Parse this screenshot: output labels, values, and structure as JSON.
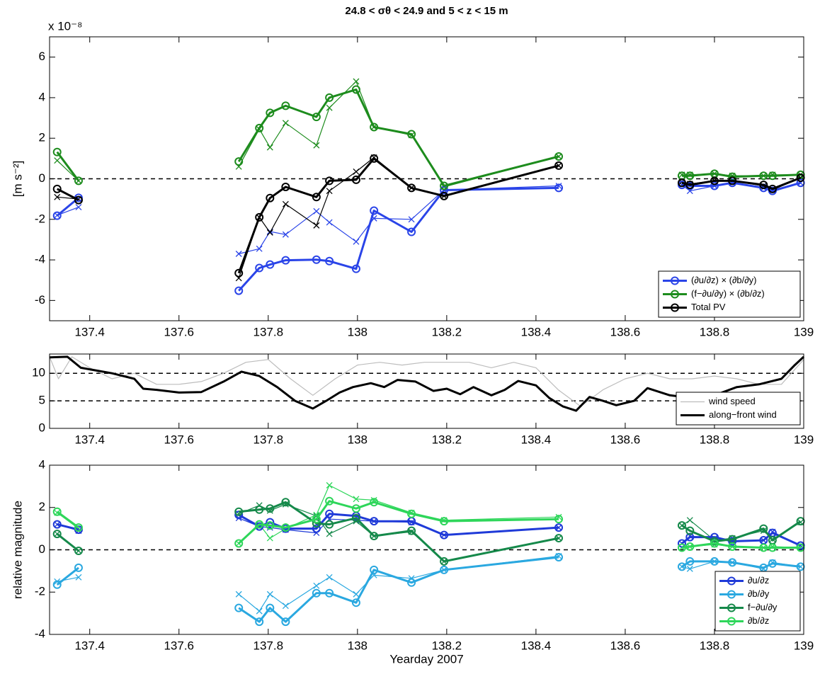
{
  "chart_data": [
    {
      "type": "line",
      "title": "24.8 < σθ < 24.9  and 5 < z < 15 m",
      "y_offset_label": "x 10⁻⁸",
      "ylabel": "[m s⁻²]",
      "xlim": [
        137.31,
        139
      ],
      "ylim": [
        -7,
        7
      ],
      "xticks": [
        137.4,
        137.6,
        137.8,
        138,
        138.2,
        138.4,
        138.6,
        138.8,
        139
      ],
      "yticks": [
        -6,
        -4,
        -2,
        0,
        2,
        4,
        6
      ],
      "reference_lines": [
        0
      ],
      "legend": "lower right",
      "x": [
        137.327,
        137.375,
        null,
        137.734,
        137.78,
        137.804,
        137.839,
        137.908,
        137.937,
        137.997,
        138.037,
        138.121,
        138.194,
        138.451,
        null,
        138.727,
        138.745,
        138.8,
        138.84,
        138.91,
        138.93,
        138.993
      ],
      "series": [
        {
          "color": "#2a44e8",
          "marker": "x",
          "width": 1.2,
          "values": [
            -1.8,
            -1.4,
            null,
            -3.7,
            -3.45,
            -2.6,
            -2.75,
            -1.6,
            -2.15,
            -3.1,
            -1.95,
            -2.0,
            -0.55,
            -0.35,
            null,
            -0.3,
            -0.6,
            -0.35,
            -0.2,
            -0.45,
            -0.55,
            -0.2
          ]
        },
        {
          "color": "#1d8c1d",
          "marker": "x",
          "width": 1.2,
          "values": [
            0.9,
            -0.1,
            null,
            0.6,
            2.45,
            1.55,
            2.75,
            1.65,
            3.5,
            4.8,
            2.55,
            2.15,
            -0.4,
            1.1,
            null,
            0.2,
            0.2,
            0.25,
            0.15,
            0.15,
            0.2,
            0.2
          ]
        },
        {
          "color": "#000000",
          "marker": "x",
          "width": 1.2,
          "values": [
            -0.9,
            -1.0,
            null,
            -4.9,
            -1.9,
            -2.65,
            -1.25,
            -2.3,
            -0.6,
            0.35,
            1.05,
            -0.45,
            -0.85,
            0.65,
            null,
            -0.15,
            -0.25,
            -0.1,
            -0.1,
            -0.35,
            -0.55,
            0.05
          ]
        },
        {
          "name": "(∂u/∂z) × (∂b/∂y)",
          "color": "#2a44e8",
          "marker": "o",
          "width": 3,
          "values": [
            -1.82,
            -0.94,
            null,
            -5.52,
            -4.4,
            -4.23,
            -4.02,
            -3.99,
            -4.06,
            -4.44,
            -1.57,
            -2.62,
            -0.56,
            -0.45,
            null,
            -0.3,
            -0.35,
            -0.35,
            -0.2,
            -0.45,
            -0.6,
            -0.2
          ]
        },
        {
          "name": "(f−∂u/∂y) × (∂b/∂z)",
          "color": "#1d8c1d",
          "marker": "o",
          "width": 3,
          "values": [
            1.32,
            -0.1,
            null,
            0.85,
            2.5,
            3.25,
            3.6,
            3.05,
            4.0,
            4.4,
            2.55,
            2.2,
            -0.35,
            1.1,
            null,
            0.15,
            0.15,
            0.25,
            0.1,
            0.15,
            0.15,
            0.2
          ]
        },
        {
          "name": "Total PV",
          "color": "#000000",
          "marker": "o",
          "width": 3,
          "values": [
            -0.5,
            -1.05,
            null,
            -4.65,
            -1.9,
            -0.95,
            -0.4,
            -0.9,
            -0.1,
            -0.05,
            1.0,
            -0.45,
            -0.85,
            0.65,
            null,
            -0.2,
            -0.3,
            -0.1,
            -0.1,
            -0.3,
            -0.5,
            0.05
          ]
        }
      ]
    },
    {
      "type": "line",
      "xlim": [
        137.31,
        139
      ],
      "ylim": [
        0,
        13.5
      ],
      "xticks": [
        137.4,
        137.6,
        137.8,
        138,
        138.2,
        138.4,
        138.6,
        138.8,
        139
      ],
      "yticks": [
        0,
        5,
        10
      ],
      "reference_lines": [
        5,
        10
      ],
      "legend": "lower right",
      "series": [
        {
          "name": "wind speed",
          "color": "#bdbdbd",
          "width": 1.2,
          "x": [
            137.31,
            137.33,
            137.36,
            137.4,
            137.45,
            137.5,
            137.55,
            137.6,
            137.65,
            137.7,
            137.75,
            137.8,
            137.85,
            137.9,
            137.95,
            138,
            138.05,
            138.1,
            138.15,
            138.2,
            138.25,
            138.3,
            138.35,
            138.4,
            138.45,
            138.5,
            138.55,
            138.6,
            138.65,
            138.7,
            138.75,
            138.8,
            138.85,
            138.9,
            138.95,
            139
          ],
          "values": [
            13,
            9,
            13,
            11,
            9,
            10,
            8,
            8,
            8.5,
            10,
            12,
            12.5,
            9,
            6,
            9,
            11.5,
            12,
            11.5,
            12,
            12,
            12,
            11,
            12,
            11,
            7,
            4,
            7,
            9,
            10,
            9,
            9,
            9.5,
            9,
            8,
            8,
            12.5
          ]
        },
        {
          "name": "along−front wind",
          "color": "#000000",
          "width": 3,
          "x": [
            137.31,
            137.35,
            137.38,
            137.45,
            137.5,
            137.52,
            137.55,
            137.6,
            137.65,
            137.7,
            137.74,
            137.78,
            137.82,
            137.86,
            137.9,
            137.93,
            137.96,
            137.99,
            138.03,
            138.06,
            138.09,
            138.13,
            138.17,
            138.2,
            138.23,
            138.26,
            138.3,
            138.33,
            138.36,
            138.4,
            138.43,
            138.46,
            138.49,
            138.52,
            138.55,
            138.58,
            138.62,
            138.65,
            138.7,
            138.75,
            138.8,
            138.85,
            138.9,
            138.95,
            138.98,
            139
          ],
          "values": [
            12.9,
            13,
            11,
            10,
            9,
            7.2,
            7.0,
            6.5,
            6.6,
            8.5,
            10.3,
            9.5,
            7.5,
            5.0,
            3.6,
            5.0,
            6.5,
            7.5,
            8.2,
            7.5,
            8.8,
            8.5,
            6.8,
            7.2,
            6.2,
            7.5,
            6.0,
            7.0,
            8.6,
            7.8,
            5.5,
            4.0,
            3.2,
            5.7,
            5.0,
            4.2,
            5.0,
            7.3,
            6.0,
            5.5,
            6.0,
            7.5,
            8.0,
            9.0,
            11.5,
            13.0
          ]
        }
      ]
    },
    {
      "type": "line",
      "xlabel": "Yearday 2007",
      "ylabel": "relative magnitude",
      "xlim": [
        137.31,
        139
      ],
      "ylim": [
        -4,
        4
      ],
      "xticks": [
        137.4,
        137.6,
        137.8,
        138,
        138.2,
        138.4,
        138.6,
        138.8,
        139
      ],
      "yticks": [
        -4,
        -2,
        0,
        2,
        4
      ],
      "reference_lines": [
        0
      ],
      "legend": "lower right",
      "x": [
        137.327,
        137.375,
        null,
        137.734,
        137.78,
        137.804,
        137.839,
        137.908,
        137.937,
        137.997,
        138.037,
        138.121,
        138.194,
        138.451,
        null,
        138.727,
        138.745,
        138.8,
        138.84,
        138.91,
        138.93,
        138.993
      ],
      "series": [
        {
          "color": "#1f3ad8",
          "marker": "x",
          "width": 1.2,
          "values": [
            1.2,
            0.9,
            null,
            1.5,
            1.1,
            1.05,
            0.95,
            0.8,
            1.45,
            1.4,
            1.35,
            1.3,
            0.7,
            1.05,
            null,
            0.3,
            0.65,
            0.55,
            0.4,
            0.45,
            0.85,
            0.2
          ]
        },
        {
          "color": "#2aa8e0",
          "marker": "x",
          "width": 1.2,
          "values": [
            -1.5,
            -1.3,
            null,
            -2.1,
            -2.9,
            -2.1,
            -2.65,
            -1.7,
            -1.3,
            -2.1,
            -1.2,
            -1.35,
            -0.95,
            -0.3,
            null,
            -0.8,
            -0.9,
            -0.55,
            -0.6,
            -0.9,
            -0.6,
            -0.8
          ]
        },
        {
          "color": "#15894a",
          "marker": "x",
          "width": 1.2,
          "values": [
            0.75,
            -0.05,
            null,
            1.7,
            2.1,
            1.85,
            2.15,
            1.6,
            0.75,
            1.35,
            0.65,
            0.85,
            -0.55,
            0.55,
            null,
            1.15,
            1.4,
            0.45,
            0.55,
            0.9,
            0.5,
            1.3
          ]
        },
        {
          "color": "#2ed65a",
          "marker": "x",
          "width": 1.2,
          "values": [
            1.75,
            1.0,
            null,
            0.3,
            1.2,
            0.55,
            1.0,
            1.65,
            3.05,
            2.4,
            2.35,
            1.75,
            1.4,
            1.55,
            null,
            0.1,
            0.15,
            0.25,
            0.15,
            0.1,
            0.15,
            0.1
          ]
        },
        {
          "name": "∂u/∂z",
          "color": "#1f3ad8",
          "marker": "o",
          "width": 3,
          "values": [
            1.2,
            0.95,
            null,
            1.65,
            1.1,
            1.3,
            1.0,
            1.0,
            1.7,
            1.6,
            1.35,
            1.35,
            0.7,
            1.05,
            null,
            0.3,
            0.6,
            0.6,
            0.4,
            0.45,
            0.8,
            0.2
          ]
        },
        {
          "name": "∂b/∂y",
          "color": "#2aa8e0",
          "marker": "o",
          "width": 3,
          "values": [
            -1.65,
            -0.85,
            null,
            -2.75,
            -3.4,
            -2.75,
            -3.4,
            -2.05,
            -2.05,
            -2.5,
            -0.95,
            -1.55,
            -0.95,
            -0.35,
            null,
            -0.8,
            -0.55,
            -0.55,
            -0.6,
            -0.85,
            -0.65,
            -0.8
          ]
        },
        {
          "name": "f−∂u/∂y",
          "color": "#15894a",
          "marker": "o",
          "width": 3,
          "values": [
            0.75,
            -0.05,
            null,
            1.8,
            1.9,
            1.95,
            2.25,
            1.25,
            1.2,
            1.5,
            0.65,
            0.9,
            -0.55,
            0.55,
            null,
            1.15,
            0.9,
            0.4,
            0.5,
            1.0,
            0.45,
            1.35
          ]
        },
        {
          "name": "∂b/∂z",
          "color": "#2ed65a",
          "marker": "o",
          "width": 3,
          "values": [
            1.8,
            1.05,
            null,
            0.3,
            1.2,
            1.15,
            1.05,
            1.45,
            2.3,
            1.95,
            2.25,
            1.7,
            1.35,
            1.45,
            null,
            0.1,
            0.15,
            0.3,
            0.15,
            0.1,
            0.1,
            0.1
          ]
        }
      ]
    }
  ]
}
